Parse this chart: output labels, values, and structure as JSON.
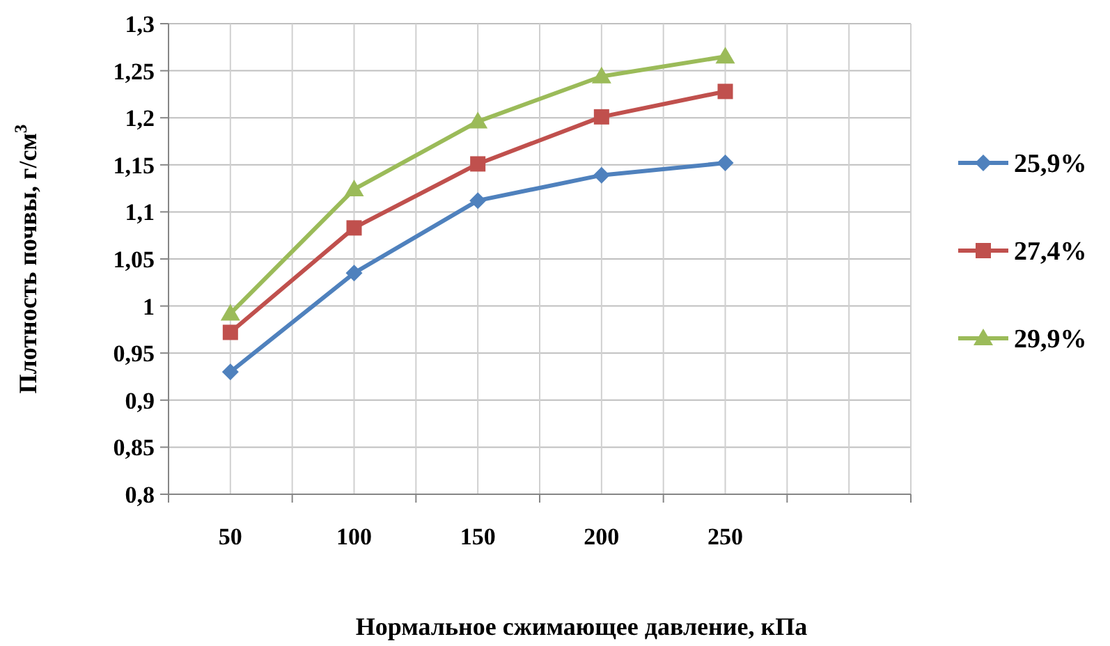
{
  "chart_data": {
    "type": "line",
    "xlabel": "Нормальное сжимающее давление, кПа",
    "ylabel": "Плотность почвы, г/см$^{3}$",
    "categories": [
      "50",
      "100",
      "150",
      "200",
      "250",
      null
    ],
    "series": [
      {
        "name": "25,9%",
        "color": "#4f81bd",
        "marker": "diamond",
        "values": [
          0.93,
          1.035,
          1.112,
          1.139,
          1.152,
          null
        ]
      },
      {
        "name": "27,4%",
        "color": "#c0504d",
        "marker": "square",
        "values": [
          0.972,
          1.083,
          1.151,
          1.201,
          1.228,
          null
        ]
      },
      {
        "name": "29,9%",
        "color": "#9bbb59",
        "marker": "triangle",
        "values": [
          0.992,
          1.124,
          1.196,
          1.244,
          1.265,
          null
        ]
      }
    ],
    "ylim": [
      0.8,
      1.3
    ],
    "yticks": [
      {
        "value": 0.8,
        "label": "0,8"
      },
      {
        "value": 0.85,
        "label": "0,85"
      },
      {
        "value": 0.9,
        "label": "0,9"
      },
      {
        "value": 0.95,
        "label": "0,95"
      },
      {
        "value": 1,
        "label": "1"
      },
      {
        "value": 1.05,
        "label": "1,05"
      },
      {
        "value": 1.1,
        "label": "1,1"
      },
      {
        "value": 1.15,
        "label": "1,15"
      },
      {
        "value": 1.2,
        "label": "1,2"
      },
      {
        "value": 1.25,
        "label": "1,25"
      },
      {
        "value": 1.3,
        "label": "1,3"
      }
    ],
    "grid": true,
    "legend": "right",
    "line_style": "solid"
  }
}
